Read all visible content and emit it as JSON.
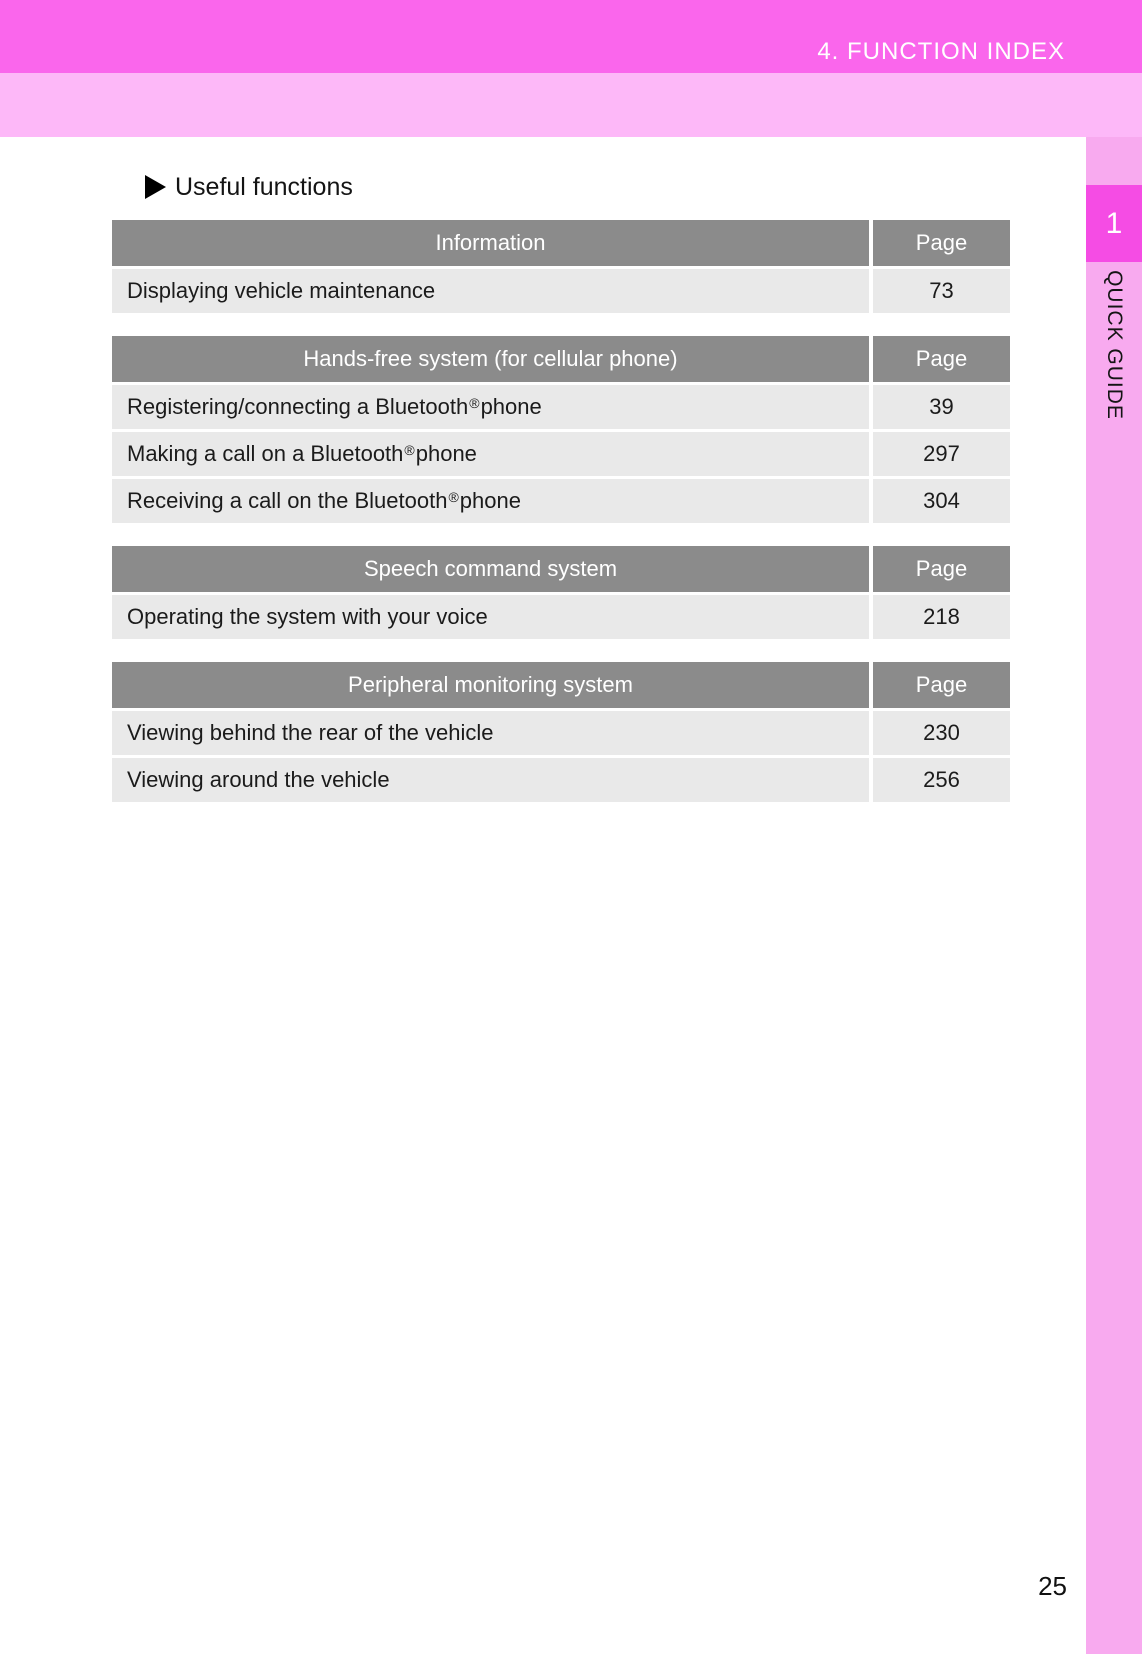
{
  "header": {
    "title": "4. FUNCTION INDEX"
  },
  "section": {
    "marker_icon": "right-triangle-icon",
    "heading": "Useful functions"
  },
  "sidebar": {
    "tab_number": "1",
    "label": "QUICK GUIDE"
  },
  "footer": {
    "page_number": "25"
  },
  "colors": {
    "header_band": "#fa66ec",
    "subheader_band": "#fdb8f8",
    "sidebar_strip": "#f8aaef",
    "sidebar_tab": "#f54ce4",
    "table_header_bg": "#8b8b8b",
    "table_row_bg": "#e9e9e9",
    "table_header_text": "#ffffff"
  },
  "tables": [
    {
      "header": "Information",
      "page_header": "Page",
      "rows": [
        {
          "label": "Displaying vehicle maintenance",
          "page": "73"
        }
      ]
    },
    {
      "header": "Hands-free system (for cellular phone)",
      "page_header": "Page",
      "rows": [
        {
          "label": "Registering/connecting a Bluetooth® phone",
          "page": "39"
        },
        {
          "label": "Making a call on a Bluetooth® phone",
          "page": "297"
        },
        {
          "label": "Receiving a call on the Bluetooth® phone",
          "page": "304"
        }
      ]
    },
    {
      "header": "Speech command system",
      "page_header": "Page",
      "rows": [
        {
          "label": "Operating the system with your voice",
          "page": "218"
        }
      ]
    },
    {
      "header": "Peripheral monitoring system",
      "page_header": "Page",
      "rows": [
        {
          "label": "Viewing behind the rear of the vehicle",
          "page": "230"
        },
        {
          "label": "Viewing around the vehicle",
          "page": "256"
        }
      ]
    }
  ]
}
